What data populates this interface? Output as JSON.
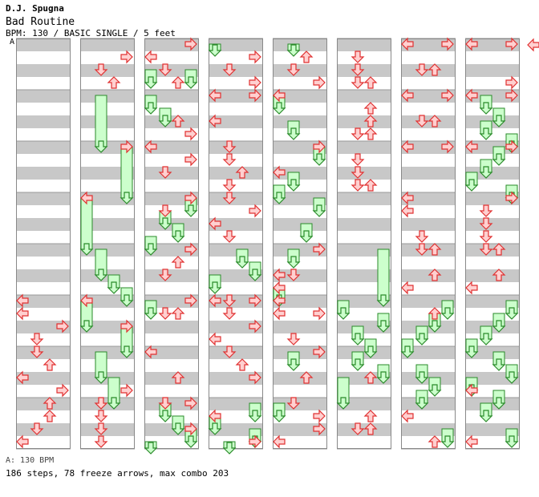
{
  "header": {
    "author": "D.J. Spugna",
    "song": "Bad Routine",
    "info": "BPM: 130 / BASIC SINGLE / 5 feet"
  },
  "chart": {
    "bpm_marker": "A",
    "colors": {
      "stripe_gray": "#c8c8c8",
      "stripe_white": "#ffffff",
      "arrow_fill": "#ffd0d0",
      "arrow_stroke": "#e03030",
      "freeze_fill": "#ccffcc",
      "freeze_stroke": "#2a8a2a",
      "bpm_line": "#6aa0d8"
    },
    "lanes": [
      "left",
      "down",
      "up",
      "right"
    ],
    "notes": [
      {
        "c": 0,
        "lane": "left",
        "beat": 20
      },
      {
        "c": 0,
        "lane": "left",
        "beat": 21
      },
      {
        "c": 0,
        "lane": "right",
        "beat": 22
      },
      {
        "c": 0,
        "lane": "down",
        "beat": 23
      },
      {
        "c": 0,
        "lane": "down",
        "beat": 24
      },
      {
        "c": 0,
        "lane": "up",
        "beat": 25
      },
      {
        "c": 0,
        "lane": "left",
        "beat": 26
      },
      {
        "c": 0,
        "lane": "right",
        "beat": 27
      },
      {
        "c": 0,
        "lane": "up",
        "beat": 28
      },
      {
        "c": 0,
        "lane": "up",
        "beat": 29
      },
      {
        "c": 0,
        "lane": "down",
        "beat": 30
      },
      {
        "c": 0,
        "lane": "left",
        "beat": 31
      },
      {
        "c": 1,
        "lane": "right",
        "beat": 1
      },
      {
        "c": 1,
        "lane": "down",
        "beat": 2
      },
      {
        "c": 1,
        "lane": "up",
        "beat": 3
      },
      {
        "c": 1,
        "lane": "right",
        "beat": 8
      },
      {
        "c": 1,
        "lane": "left",
        "beat": 12
      },
      {
        "c": 1,
        "lane": "left",
        "beat": 20
      },
      {
        "c": 1,
        "lane": "right",
        "beat": 22
      },
      {
        "c": 1,
        "lane": "right",
        "beat": 27
      },
      {
        "c": 1,
        "lane": "down",
        "beat": 28
      },
      {
        "c": 1,
        "lane": "down",
        "beat": 29
      },
      {
        "c": 1,
        "lane": "down",
        "beat": 30
      },
      {
        "c": 1,
        "lane": "down",
        "beat": 31
      },
      {
        "c": 2,
        "lane": "right",
        "beat": 0
      },
      {
        "c": 2,
        "lane": "left",
        "beat": 1
      },
      {
        "c": 2,
        "lane": "down",
        "beat": 2
      },
      {
        "c": 2,
        "lane": "up",
        "beat": 3
      },
      {
        "c": 2,
        "lane": "up",
        "beat": 6
      },
      {
        "c": 2,
        "lane": "right",
        "beat": 7
      },
      {
        "c": 2,
        "lane": "left",
        "beat": 8
      },
      {
        "c": 2,
        "lane": "right",
        "beat": 9
      },
      {
        "c": 2,
        "lane": "down",
        "beat": 10
      },
      {
        "c": 2,
        "lane": "right",
        "beat": 12
      },
      {
        "c": 2,
        "lane": "down",
        "beat": 13
      },
      {
        "c": 2,
        "lane": "right",
        "beat": 16
      },
      {
        "c": 2,
        "lane": "up",
        "beat": 17
      },
      {
        "c": 2,
        "lane": "down",
        "beat": 18
      },
      {
        "c": 2,
        "lane": "down",
        "beat": 21
      },
      {
        "c": 2,
        "lane": "up",
        "beat": 21
      },
      {
        "c": 2,
        "lane": "right",
        "beat": 20
      },
      {
        "c": 2,
        "lane": "left",
        "beat": 24
      },
      {
        "c": 2,
        "lane": "up",
        "beat": 26
      },
      {
        "c": 2,
        "lane": "right",
        "beat": 28
      },
      {
        "c": 2,
        "lane": "down",
        "beat": 28
      },
      {
        "c": 2,
        "lane": "right",
        "beat": 30
      },
      {
        "c": 3,
        "lane": "right",
        "beat": 1
      },
      {
        "c": 3,
        "lane": "down",
        "beat": 2
      },
      {
        "c": 3,
        "lane": "right",
        "beat": 3
      },
      {
        "c": 3,
        "lane": "left",
        "beat": 4
      },
      {
        "c": 3,
        "lane": "right",
        "beat": 4
      },
      {
        "c": 3,
        "lane": "left",
        "beat": 6
      },
      {
        "c": 3,
        "lane": "down",
        "beat": 8
      },
      {
        "c": 3,
        "lane": "down",
        "beat": 9
      },
      {
        "c": 3,
        "lane": "up",
        "beat": 10
      },
      {
        "c": 3,
        "lane": "down",
        "beat": 11
      },
      {
        "c": 3,
        "lane": "down",
        "beat": 12
      },
      {
        "c": 3,
        "lane": "right",
        "beat": 13
      },
      {
        "c": 3,
        "lane": "left",
        "beat": 14
      },
      {
        "c": 3,
        "lane": "down",
        "beat": 15
      },
      {
        "c": 3,
        "lane": "left",
        "beat": 20
      },
      {
        "c": 3,
        "lane": "down",
        "beat": 20
      },
      {
        "c": 3,
        "lane": "right",
        "beat": 20
      },
      {
        "c": 3,
        "lane": "down",
        "beat": 21
      },
      {
        "c": 3,
        "lane": "right",
        "beat": 22
      },
      {
        "c": 3,
        "lane": "left",
        "beat": 23
      },
      {
        "c": 3,
        "lane": "down",
        "beat": 24
      },
      {
        "c": 3,
        "lane": "up",
        "beat": 25
      },
      {
        "c": 3,
        "lane": "right",
        "beat": 26
      },
      {
        "c": 3,
        "lane": "left",
        "beat": 29
      },
      {
        "c": 3,
        "lane": "right",
        "beat": 31
      },
      {
        "c": 4,
        "lane": "up",
        "beat": 1
      },
      {
        "c": 4,
        "lane": "down",
        "beat": 2
      },
      {
        "c": 4,
        "lane": "right",
        "beat": 3
      },
      {
        "c": 4,
        "lane": "left",
        "beat": 4
      },
      {
        "c": 4,
        "lane": "right",
        "beat": 8
      },
      {
        "c": 4,
        "lane": "left",
        "beat": 10
      },
      {
        "c": 4,
        "lane": "right",
        "beat": 16
      },
      {
        "c": 4,
        "lane": "down",
        "beat": 18
      },
      {
        "c": 4,
        "lane": "left",
        "beat": 18
      },
      {
        "c": 4,
        "lane": "left",
        "beat": 19
      },
      {
        "c": 4,
        "lane": "left",
        "beat": 20
      },
      {
        "c": 4,
        "lane": "right",
        "beat": 21
      },
      {
        "c": 4,
        "lane": "left",
        "beat": 21
      },
      {
        "c": 4,
        "lane": "down",
        "beat": 23
      },
      {
        "c": 4,
        "lane": "right",
        "beat": 24
      },
      {
        "c": 4,
        "lane": "up",
        "beat": 26
      },
      {
        "c": 4,
        "lane": "down",
        "beat": 28
      },
      {
        "c": 4,
        "lane": "right",
        "beat": 29
      },
      {
        "c": 4,
        "lane": "right",
        "beat": 30
      },
      {
        "c": 4,
        "lane": "left",
        "beat": 31
      },
      {
        "c": 5,
        "lane": "down",
        "beat": 1
      },
      {
        "c": 5,
        "lane": "down",
        "beat": 2
      },
      {
        "c": 5,
        "lane": "down",
        "beat": 3
      },
      {
        "c": 5,
        "lane": "up",
        "beat": 3
      },
      {
        "c": 5,
        "lane": "up",
        "beat": 5
      },
      {
        "c": 5,
        "lane": "up",
        "beat": 6
      },
      {
        "c": 5,
        "lane": "down",
        "beat": 7
      },
      {
        "c": 5,
        "lane": "up",
        "beat": 7
      },
      {
        "c": 5,
        "lane": "down",
        "beat": 9
      },
      {
        "c": 5,
        "lane": "down",
        "beat": 10
      },
      {
        "c": 5,
        "lane": "down",
        "beat": 11
      },
      {
        "c": 5,
        "lane": "up",
        "beat": 11
      },
      {
        "c": 5,
        "lane": "up",
        "beat": 26
      },
      {
        "c": 5,
        "lane": "up",
        "beat": 29
      },
      {
        "c": 5,
        "lane": "down",
        "beat": 30
      },
      {
        "c": 5,
        "lane": "up",
        "beat": 30
      },
      {
        "c": 6,
        "lane": "left",
        "beat": 0
      },
      {
        "c": 6,
        "lane": "right",
        "beat": 0
      },
      {
        "c": 6,
        "lane": "down",
        "beat": 2
      },
      {
        "c": 6,
        "lane": "up",
        "beat": 2
      },
      {
        "c": 6,
        "lane": "left",
        "beat": 4
      },
      {
        "c": 6,
        "lane": "right",
        "beat": 4
      },
      {
        "c": 6,
        "lane": "down",
        "beat": 6
      },
      {
        "c": 6,
        "lane": "up",
        "beat": 6
      },
      {
        "c": 6,
        "lane": "left",
        "beat": 8
      },
      {
        "c": 6,
        "lane": "right",
        "beat": 8
      },
      {
        "c": 6,
        "lane": "left",
        "beat": 12
      },
      {
        "c": 6,
        "lane": "left",
        "beat": 13
      },
      {
        "c": 6,
        "lane": "down",
        "beat": 15
      },
      {
        "c": 6,
        "lane": "down",
        "beat": 16
      },
      {
        "c": 6,
        "lane": "up",
        "beat": 16
      },
      {
        "c": 6,
        "lane": "up",
        "beat": 18
      },
      {
        "c": 6,
        "lane": "left",
        "beat": 19
      },
      {
        "c": 6,
        "lane": "up",
        "beat": 21
      },
      {
        "c": 6,
        "lane": "left",
        "beat": 29
      },
      {
        "c": 6,
        "lane": "up",
        "beat": 31
      },
      {
        "c": 7,
        "lane": "left",
        "beat": 0
      },
      {
        "c": 7,
        "lane": "right",
        "beat": 0
      },
      {
        "c": 7,
        "lane": "right",
        "beat": 3
      },
      {
        "c": 7,
        "lane": "left",
        "beat": 4
      },
      {
        "c": 7,
        "lane": "right",
        "beat": 4
      },
      {
        "c": 7,
        "lane": "left",
        "beat": 8
      },
      {
        "c": 7,
        "lane": "right",
        "beat": 8
      },
      {
        "c": 7,
        "lane": "right",
        "beat": 12
      },
      {
        "c": 7,
        "lane": "down",
        "beat": 13
      },
      {
        "c": 7,
        "lane": "down",
        "beat": 14
      },
      {
        "c": 7,
        "lane": "down",
        "beat": 15
      },
      {
        "c": 7,
        "lane": "down",
        "beat": 16
      },
      {
        "c": 7,
        "lane": "up",
        "beat": 16
      },
      {
        "c": 7,
        "lane": "left",
        "beat": 19
      },
      {
        "c": 7,
        "lane": "up",
        "beat": 18
      },
      {
        "c": 7,
        "lane": "left",
        "beat": 27
      },
      {
        "c": 7,
        "lane": "left",
        "beat": 31
      }
    ],
    "freezes": [
      {
        "c": 1,
        "lane": "down",
        "start": 4,
        "end": 8
      },
      {
        "c": 1,
        "lane": "right",
        "start": 8,
        "end": 12
      },
      {
        "c": 1,
        "lane": "left",
        "start": 12,
        "end": 16
      },
      {
        "c": 1,
        "lane": "down",
        "start": 16,
        "end": 18
      },
      {
        "c": 1,
        "lane": "up",
        "start": 18,
        "end": 19
      },
      {
        "c": 1,
        "lane": "right",
        "start": 19,
        "end": 20
      },
      {
        "c": 1,
        "lane": "left",
        "start": 20,
        "end": 22
      },
      {
        "c": 1,
        "lane": "right",
        "start": 22,
        "end": 24
      },
      {
        "c": 1,
        "lane": "down",
        "start": 24,
        "end": 26
      },
      {
        "c": 1,
        "lane": "up",
        "start": 26,
        "end": 28
      },
      {
        "c": 2,
        "lane": "left",
        "start": 2,
        "end": 3
      },
      {
        "c": 2,
        "lane": "right",
        "start": 2,
        "end": 3
      },
      {
        "c": 2,
        "lane": "left",
        "start": 4,
        "end": 5
      },
      {
        "c": 2,
        "lane": "down",
        "start": 5,
        "end": 6
      },
      {
        "c": 2,
        "lane": "right",
        "start": 12,
        "end": 13
      },
      {
        "c": 2,
        "lane": "down",
        "start": 13,
        "end": 14
      },
      {
        "c": 2,
        "lane": "up",
        "start": 14,
        "end": 15
      },
      {
        "c": 2,
        "lane": "left",
        "start": 15,
        "end": 16
      },
      {
        "c": 2,
        "lane": "left",
        "start": 20,
        "end": 21
      },
      {
        "c": 2,
        "lane": "down",
        "start": 28,
        "end": 29
      },
      {
        "c": 2,
        "lane": "up",
        "start": 29,
        "end": 30
      },
      {
        "c": 2,
        "lane": "right",
        "start": 30,
        "end": 31
      },
      {
        "c": 2,
        "lane": "left",
        "start": 31,
        "end": 32
      },
      {
        "c": 3,
        "lane": "left",
        "start": 0,
        "end": 0.5
      },
      {
        "c": 3,
        "lane": "up",
        "start": 16,
        "end": 17
      },
      {
        "c": 3,
        "lane": "right",
        "start": 17,
        "end": 18
      },
      {
        "c": 3,
        "lane": "left",
        "start": 18,
        "end": 19
      },
      {
        "c": 3,
        "lane": "right",
        "start": 28,
        "end": 29
      },
      {
        "c": 3,
        "lane": "left",
        "start": 29,
        "end": 30
      },
      {
        "c": 3,
        "lane": "right",
        "start": 30,
        "end": 31
      },
      {
        "c": 3,
        "lane": "down",
        "start": 31,
        "end": 32
      },
      {
        "c": 4,
        "lane": "down",
        "start": 0,
        "end": 0.5
      },
      {
        "c": 4,
        "lane": "left",
        "start": 4,
        "end": 5
      },
      {
        "c": 4,
        "lane": "down",
        "start": 6,
        "end": 7
      },
      {
        "c": 4,
        "lane": "right",
        "start": 8,
        "end": 9
      },
      {
        "c": 4,
        "lane": "down",
        "start": 10,
        "end": 11
      },
      {
        "c": 4,
        "lane": "left",
        "start": 11,
        "end": 12
      },
      {
        "c": 4,
        "lane": "right",
        "start": 12,
        "end": 13
      },
      {
        "c": 4,
        "lane": "up",
        "start": 14,
        "end": 15
      },
      {
        "c": 4,
        "lane": "down",
        "start": 16,
        "end": 17
      },
      {
        "c": 4,
        "lane": "left",
        "start": 19,
        "end": 20
      },
      {
        "c": 4,
        "lane": "down",
        "start": 24,
        "end": 25
      },
      {
        "c": 4,
        "lane": "left",
        "start": 28,
        "end": 29
      },
      {
        "c": 5,
        "lane": "right",
        "start": 16,
        "end": 20
      },
      {
        "c": 5,
        "lane": "left",
        "start": 20,
        "end": 21
      },
      {
        "c": 5,
        "lane": "right",
        "start": 21,
        "end": 22
      },
      {
        "c": 5,
        "lane": "down",
        "start": 22,
        "end": 23
      },
      {
        "c": 5,
        "lane": "up",
        "start": 23,
        "end": 24
      },
      {
        "c": 5,
        "lane": "down",
        "start": 24,
        "end": 25
      },
      {
        "c": 5,
        "lane": "right",
        "start": 25,
        "end": 26
      },
      {
        "c": 5,
        "lane": "left",
        "start": 26,
        "end": 28
      },
      {
        "c": 6,
        "lane": "right",
        "start": 20,
        "end": 21
      },
      {
        "c": 6,
        "lane": "up",
        "start": 21,
        "end": 22
      },
      {
        "c": 6,
        "lane": "down",
        "start": 22,
        "end": 23
      },
      {
        "c": 6,
        "lane": "left",
        "start": 23,
        "end": 24
      },
      {
        "c": 6,
        "lane": "down",
        "start": 25,
        "end": 26
      },
      {
        "c": 6,
        "lane": "up",
        "start": 26,
        "end": 27
      },
      {
        "c": 6,
        "lane": "down",
        "start": 27,
        "end": 28
      },
      {
        "c": 6,
        "lane": "right",
        "start": 30,
        "end": 31
      },
      {
        "c": 7,
        "lane": "down",
        "start": 4,
        "end": 5
      },
      {
        "c": 7,
        "lane": "up",
        "start": 5,
        "end": 6
      },
      {
        "c": 7,
        "lane": "down",
        "start": 6,
        "end": 7
      },
      {
        "c": 7,
        "lane": "right",
        "start": 7,
        "end": 8
      },
      {
        "c": 7,
        "lane": "up",
        "start": 8,
        "end": 9
      },
      {
        "c": 7,
        "lane": "down",
        "start": 9,
        "end": 10
      },
      {
        "c": 7,
        "lane": "left",
        "start": 10,
        "end": 11
      },
      {
        "c": 7,
        "lane": "right",
        "start": 11,
        "end": 12
      },
      {
        "c": 7,
        "lane": "right",
        "start": 20,
        "end": 21
      },
      {
        "c": 7,
        "lane": "up",
        "start": 21,
        "end": 22
      },
      {
        "c": 7,
        "lane": "down",
        "start": 22,
        "end": 23
      },
      {
        "c": 7,
        "lane": "left",
        "start": 23,
        "end": 24
      },
      {
        "c": 7,
        "lane": "up",
        "start": 24,
        "end": 25
      },
      {
        "c": 7,
        "lane": "right",
        "start": 25,
        "end": 26
      },
      {
        "c": 7,
        "lane": "left",
        "start": 26,
        "end": 27
      },
      {
        "c": 7,
        "lane": "up",
        "start": 27,
        "end": 28
      },
      {
        "c": 7,
        "lane": "down",
        "start": 28,
        "end": 29
      },
      {
        "c": 7,
        "lane": "right",
        "start": 30,
        "end": 31
      }
    ]
  },
  "footer": {
    "legend": "A: 130 BPM",
    "summary": "186 steps, 78 freeze arrows, max combo 203"
  }
}
